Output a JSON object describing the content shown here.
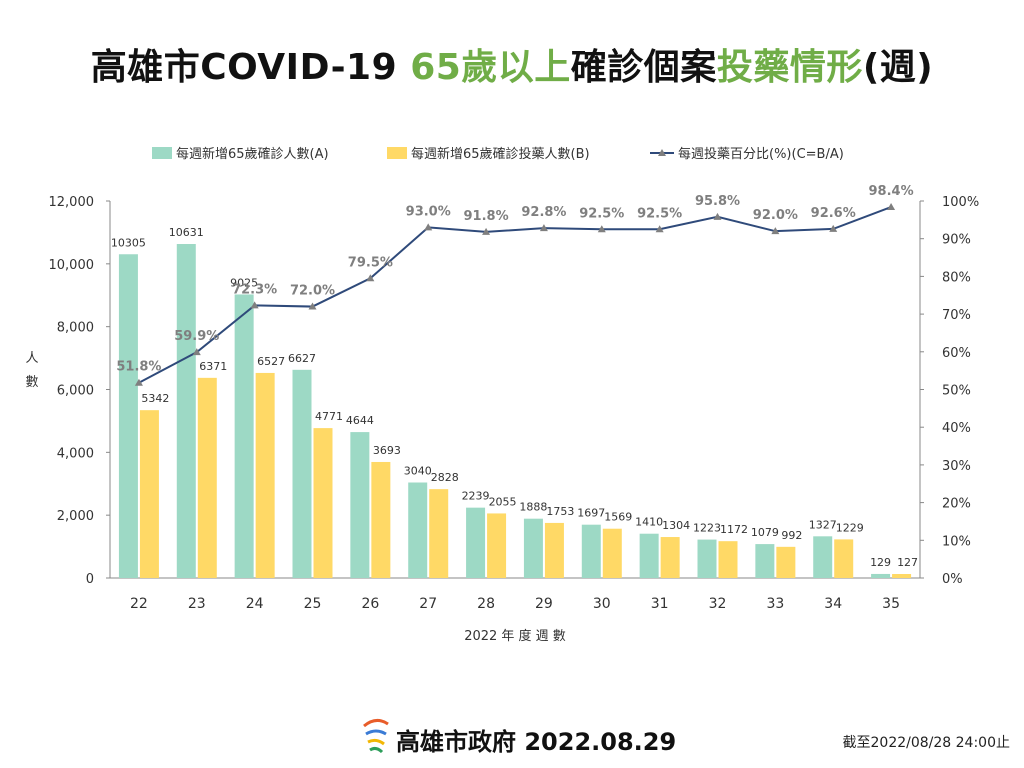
{
  "title": {
    "part1": "高雄市COVID-19 ",
    "part2": "65歲以上",
    "part3": "確診個案",
    "part4": "投藥情形",
    "part5": "(週)"
  },
  "footer": {
    "org_date": "高雄市政府 2022.08.29",
    "cutoff": "截至2022/08/28 24:00止"
  },
  "colors": {
    "series_a": "#9dd9c5",
    "series_b": "#ffd966",
    "series_c": "#2f4a7a",
    "title_accent": "#70ad47"
  },
  "chart_data": {
    "type": "bar",
    "categories": [
      "22",
      "23",
      "24",
      "25",
      "26",
      "27",
      "28",
      "29",
      "30",
      "31",
      "32",
      "33",
      "34",
      "35"
    ],
    "series": [
      {
        "name": "每週新增65歲確診人數(A)",
        "type": "bar",
        "axis": "left",
        "values": [
          10305,
          10631,
          9025,
          6627,
          4644,
          3040,
          2239,
          1888,
          1697,
          1410,
          1223,
          1079,
          1327,
          129
        ]
      },
      {
        "name": "每週新增65歲確診投藥人數(B)",
        "type": "bar",
        "axis": "left",
        "values": [
          5342,
          6371,
          6527,
          4771,
          3693,
          2828,
          2055,
          1753,
          1569,
          1304,
          1172,
          992,
          1229,
          127
        ]
      },
      {
        "name": "每週投藥百分比(%)(C=B/A)",
        "type": "line",
        "axis": "right",
        "values": [
          51.8,
          59.9,
          72.3,
          72.0,
          79.5,
          93.0,
          91.8,
          92.8,
          92.5,
          92.5,
          95.8,
          92.0,
          92.6,
          98.4
        ]
      }
    ],
    "a_labels": [
      "10305",
      "10631",
      "9025",
      "6627",
      "4644",
      "3040",
      "2239",
      "1888",
      "1697",
      "1410",
      "1223",
      "1079",
      "1327",
      "129"
    ],
    "b_labels": [
      "5342",
      "6371",
      "6527",
      "4771",
      "3693",
      "2828",
      "2055",
      "1753",
      "1569",
      "1304",
      "1172",
      "992",
      "1229",
      "127"
    ],
    "c_labels": [
      "51.8%",
      "59.9%",
      "72.3%",
      "72.0%",
      "79.5%",
      "93.0%",
      "91.8%",
      "92.8%",
      "92.5%",
      "92.5%",
      "95.8%",
      "92.0%",
      "92.6%",
      "98.4%"
    ],
    "left_ticks": [
      "0",
      "2,000",
      "4,000",
      "6,000",
      "8,000",
      "10,000",
      "12,000"
    ],
    "right_ticks": [
      "0%",
      "10%",
      "20%",
      "30%",
      "40%",
      "50%",
      "60%",
      "70%",
      "80%",
      "90%",
      "100%"
    ],
    "ylim": [
      0,
      12000
    ],
    "y2lim": [
      0,
      100
    ],
    "xlabel": "2022 年 度 週 數",
    "ylabel": "人 數",
    "legend_position": "top",
    "grid": false
  }
}
